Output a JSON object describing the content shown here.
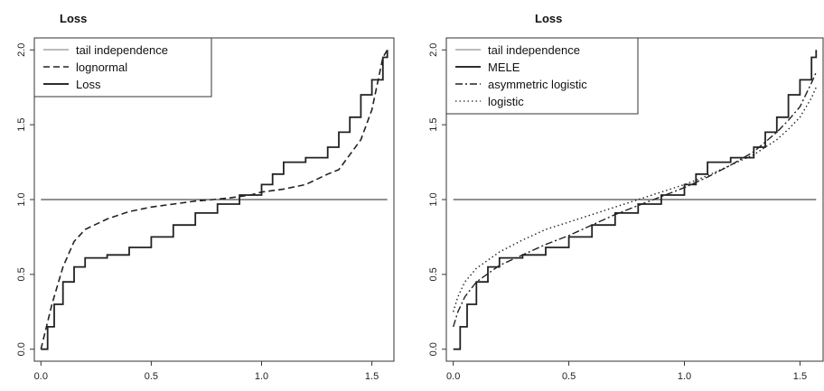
{
  "chart_data": [
    {
      "type": "line",
      "title": "Loss",
      "xlim": [
        -0.03,
        1.6
      ],
      "ylim": [
        -0.08,
        2.08
      ],
      "xticks": [
        "0.0",
        "0.5",
        "1.0",
        "1.5"
      ],
      "yticks": [
        "0.0",
        "0.5",
        "1.0",
        "1.5",
        "2.0"
      ],
      "legend_position": "top-left",
      "series": [
        {
          "name": "tail independence",
          "style": "solid-thin",
          "color": "#777777",
          "x": [
            0,
            1.57
          ],
          "y": [
            1.0,
            1.0
          ]
        },
        {
          "name": "lognormal",
          "style": "dashed",
          "color": "#222222",
          "x": [
            0,
            0.05,
            0.1,
            0.15,
            0.2,
            0.3,
            0.4,
            0.5,
            0.6,
            0.7,
            0.78,
            0.85,
            0.95,
            1.0,
            1.1,
            1.2,
            1.3,
            1.35,
            1.4,
            1.45,
            1.5,
            1.55,
            1.57
          ],
          "y": [
            0.0,
            0.3,
            0.55,
            0.72,
            0.8,
            0.87,
            0.92,
            0.95,
            0.97,
            0.99,
            1.0,
            1.01,
            1.03,
            1.05,
            1.07,
            1.1,
            1.17,
            1.2,
            1.3,
            1.4,
            1.6,
            1.95,
            2.0
          ]
        },
        {
          "name": "Loss",
          "style": "solid",
          "color": "#111111",
          "x": [
            0,
            0.03,
            0.06,
            0.1,
            0.15,
            0.2,
            0.3,
            0.4,
            0.5,
            0.6,
            0.7,
            0.8,
            0.9,
            1.0,
            1.05,
            1.1,
            1.2,
            1.3,
            1.35,
            1.4,
            1.45,
            1.5,
            1.55,
            1.57
          ],
          "y": [
            0.0,
            0.15,
            0.3,
            0.45,
            0.55,
            0.61,
            0.63,
            0.68,
            0.75,
            0.83,
            0.91,
            0.97,
            1.03,
            1.1,
            1.17,
            1.25,
            1.28,
            1.35,
            1.45,
            1.55,
            1.7,
            1.8,
            1.95,
            2.0
          ]
        }
      ]
    },
    {
      "type": "line",
      "title": "Loss",
      "xlim": [
        -0.03,
        1.6
      ],
      "ylim": [
        -0.08,
        2.08
      ],
      "xticks": [
        "0.0",
        "0.5",
        "1.0",
        "1.5"
      ],
      "yticks": [
        "0.0",
        "0.5",
        "1.0",
        "1.5",
        "2.0"
      ],
      "legend_position": "top-left",
      "series": [
        {
          "name": "tail independence",
          "style": "solid-thin",
          "color": "#777777",
          "x": [
            0,
            1.57
          ],
          "y": [
            1.0,
            1.0
          ]
        },
        {
          "name": "MELE",
          "style": "solid",
          "color": "#111111",
          "x": [
            0,
            0.03,
            0.06,
            0.1,
            0.15,
            0.2,
            0.3,
            0.4,
            0.5,
            0.6,
            0.7,
            0.8,
            0.9,
            1.0,
            1.05,
            1.1,
            1.2,
            1.3,
            1.35,
            1.4,
            1.45,
            1.5,
            1.55,
            1.57
          ],
          "y": [
            0.0,
            0.15,
            0.3,
            0.45,
            0.55,
            0.61,
            0.63,
            0.68,
            0.75,
            0.83,
            0.91,
            0.97,
            1.03,
            1.1,
            1.17,
            1.25,
            1.28,
            1.35,
            1.45,
            1.55,
            1.7,
            1.8,
            1.95,
            2.0
          ]
        },
        {
          "name": "asymmetric logistic",
          "style": "dashdot",
          "color": "#222222",
          "x": [
            0,
            0.02,
            0.05,
            0.1,
            0.2,
            0.3,
            0.4,
            0.5,
            0.6,
            0.7,
            0.8,
            0.9,
            1.0,
            1.1,
            1.2,
            1.3,
            1.4,
            1.45,
            1.5,
            1.55,
            1.57
          ],
          "y": [
            0.15,
            0.25,
            0.35,
            0.45,
            0.56,
            0.63,
            0.7,
            0.76,
            0.83,
            0.9,
            0.96,
            1.02,
            1.08,
            1.15,
            1.23,
            1.32,
            1.45,
            1.53,
            1.62,
            1.78,
            1.85
          ]
        },
        {
          "name": "logistic",
          "style": "dotted",
          "color": "#444444",
          "x": [
            0,
            0.02,
            0.05,
            0.1,
            0.2,
            0.3,
            0.4,
            0.5,
            0.6,
            0.7,
            0.8,
            0.9,
            1.0,
            1.1,
            1.2,
            1.3,
            1.4,
            1.45,
            1.5,
            1.55,
            1.57
          ],
          "y": [
            0.25,
            0.35,
            0.45,
            0.54,
            0.65,
            0.73,
            0.8,
            0.85,
            0.9,
            0.95,
            1.0,
            1.05,
            1.1,
            1.16,
            1.23,
            1.3,
            1.4,
            1.47,
            1.55,
            1.68,
            1.75
          ]
        }
      ]
    }
  ]
}
